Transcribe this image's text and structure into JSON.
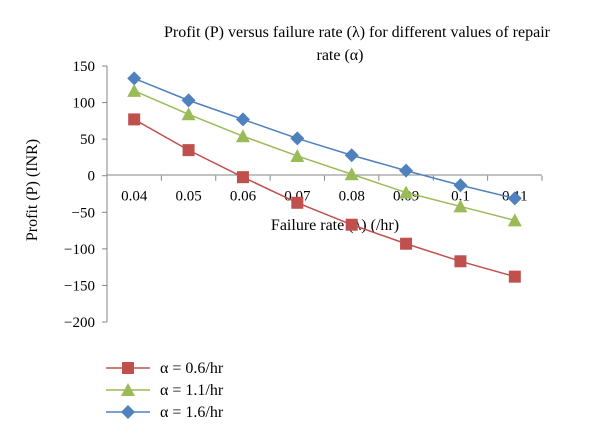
{
  "chart_data": {
    "type": "line",
    "title_lines": [
      "Profit (P) versus failure rate (λ) for different values of repair",
      "rate (α)"
    ],
    "xlabel": "Failure rate (λ) (/hr)",
    "ylabel": "Profit (P) (INR)",
    "x": [
      0.04,
      0.05,
      0.06,
      0.07,
      0.08,
      0.09,
      0.1,
      0.11
    ],
    "x_tick_labels": [
      "0.04",
      "0.05",
      "0.06",
      "0.07",
      "0.08",
      "0.09",
      "0.1",
      "0.11"
    ],
    "ylim": [
      -200,
      150
    ],
    "y_ticks": [
      150,
      100,
      50,
      0,
      -50,
      -100,
      -150,
      -200
    ],
    "y_tick_labels": [
      "150",
      "100",
      "50",
      "0",
      "−50",
      "−100",
      "−150",
      "−200"
    ],
    "grid": false,
    "legend_position": "bottom-left",
    "series": [
      {
        "name": "α = 0.6/hr",
        "color": "#c0504d",
        "marker": "square",
        "values": [
          77,
          35,
          -2,
          -37,
          -67,
          -93,
          -117,
          -138
        ]
      },
      {
        "name": "α = 1.1/hr",
        "color": "#9bbb59",
        "marker": "triangle",
        "values": [
          116,
          84,
          54,
          27,
          2,
          -23,
          -42,
          -61
        ]
      },
      {
        "name": "α = 1.6/hr",
        "color": "#4f81bd",
        "marker": "diamond",
        "values": [
          133,
          103,
          77,
          51,
          28,
          7,
          -13,
          -31
        ]
      }
    ]
  }
}
